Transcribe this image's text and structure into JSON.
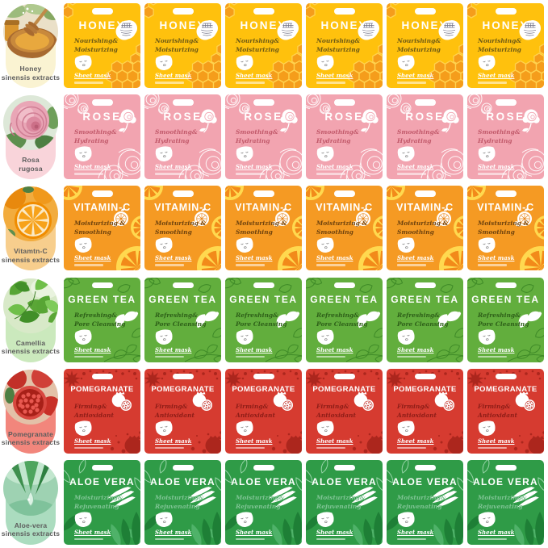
{
  "grid": {
    "rows": 6,
    "packets_per_row": 6
  },
  "rows": [
    {
      "flavor": "honey",
      "title": "HONEY",
      "subtitle_line1": "Nourishing&",
      "subtitle_line2": "Moisturizing",
      "sheet_mask_label": "Sheet mask",
      "packet_count": 6,
      "icons": [
        "hang-hole",
        "honeycomb-pattern",
        "honey-stamp-badge-icon",
        "face-mask-icon"
      ],
      "sidebar": {
        "label_line1": "Honey",
        "label_line2": "sinensis extracts",
        "photo_icon": "honey-dipper-photo"
      },
      "colors": {
        "packet_bg": "#FFC10D",
        "title": "#FFFFFF",
        "subtitle": "#6E5A14",
        "deco_primary": "#F59D1B",
        "deco_secondary": "#FFD24F",
        "sidebar_label_bg": "#FAF3D2"
      }
    },
    {
      "flavor": "rose",
      "title": "ROSE",
      "subtitle_line1": "Smoothing&",
      "subtitle_line2": "Hydrating",
      "sheet_mask_label": "Sheet mask",
      "packet_count": 6,
      "icons": [
        "hang-hole",
        "rose-line-art",
        "white-rose-icon",
        "face-mask-icon"
      ],
      "sidebar": {
        "label_line1": "Rosa",
        "label_line2": "rugosa",
        "photo_icon": "rose-flower-photo"
      },
      "colors": {
        "packet_bg": "#F2A4B0",
        "title": "#FFFFFF",
        "subtitle": "#C25A6B",
        "deco_primary": "#FFFFFF",
        "deco_secondary": "#FFFFFF",
        "sidebar_label_bg": "#F9D4DA"
      }
    },
    {
      "flavor": "vitamin-c",
      "title": "VITAMIN-C",
      "subtitle_line1": "Moisturizing &",
      "subtitle_line2": "Smoothing",
      "sheet_mask_label": "Sheet mask",
      "packet_count": 6,
      "icons": [
        "hang-hole",
        "orange-slice-pattern",
        "white-orange-icon",
        "face-mask-icon"
      ],
      "sidebar": {
        "label_line1": "Vitamtn-C",
        "label_line2": "sinensis extracts",
        "photo_icon": "orange-slice-photo"
      },
      "colors": {
        "packet_bg": "#F59A23",
        "title": "#FFFFFF",
        "subtitle": "#70430D",
        "deco_primary": "#FFD94F",
        "deco_secondary": "#F28A1A",
        "sidebar_label_bg": "#F7CE8D"
      }
    },
    {
      "flavor": "green-tea",
      "title": "GREEN TEA",
      "subtitle_line1": "Refreshing&",
      "subtitle_line2": "Pore Cleansing",
      "sheet_mask_label": "Sheet mask",
      "packet_count": 6,
      "icons": [
        "hang-hole",
        "tea-leaf-line-art",
        "white-tea-leaves-icon",
        "face-mask-icon"
      ],
      "sidebar": {
        "label_line1": "Camellia",
        "label_line2": "sinensis extracts",
        "photo_icon": "tea-leaves-photo"
      },
      "colors": {
        "packet_bg": "#62AE3D",
        "title": "#FFFFFF",
        "subtitle": "#2D5F18",
        "deco_primary": "#3E8A27",
        "deco_secondary": "#FFFFFF",
        "sidebar_label_bg": "#CBE9BD"
      }
    },
    {
      "flavor": "pomegranate",
      "title": "POMEGRANATE",
      "subtitle_line1": "Firming&",
      "subtitle_line2": "Antioxidant",
      "sheet_mask_label": "Sheet mask",
      "packet_count": 6,
      "icons": [
        "hang-hole",
        "pomegranate-splatter-pattern",
        "white-pomegranate-icon",
        "face-mask-icon"
      ],
      "sidebar": {
        "label_line1": "Pomegranate",
        "label_line2": "sinensis extracts",
        "photo_icon": "pomegranate-fruit-photo"
      },
      "colors": {
        "packet_bg": "#D63B30",
        "title": "#FFFFFF",
        "subtitle": "#8E1D17",
        "deco_primary": "#AC261D",
        "deco_secondary": "#FFFFFF",
        "sidebar_label_bg": "#F2867C"
      }
    },
    {
      "flavor": "aloe-vera",
      "title": "ALOE VERA",
      "subtitle_line1": "Moisturizing&",
      "subtitle_line2": "Rejuvenating",
      "sheet_mask_label": "Sheet mask",
      "packet_count": 6,
      "icons": [
        "hang-hole",
        "aloe-leaf-outlines",
        "white-aloe-slices-icon",
        "face-mask-icon",
        "aloe-plant-silhouette"
      ],
      "sidebar": {
        "label_line1": "Aloe-vera",
        "label_line2": "sinensis extracts",
        "photo_icon": "aloe-vera-photo"
      },
      "colors": {
        "packet_bg": "#2F9B47",
        "title": "#FFFFFF",
        "subtitle": "#7FC494",
        "deco_primary": "#1E7F36",
        "deco_secondary": "#BFE8CC",
        "sidebar_label_bg": "#ABDCBF"
      }
    }
  ]
}
